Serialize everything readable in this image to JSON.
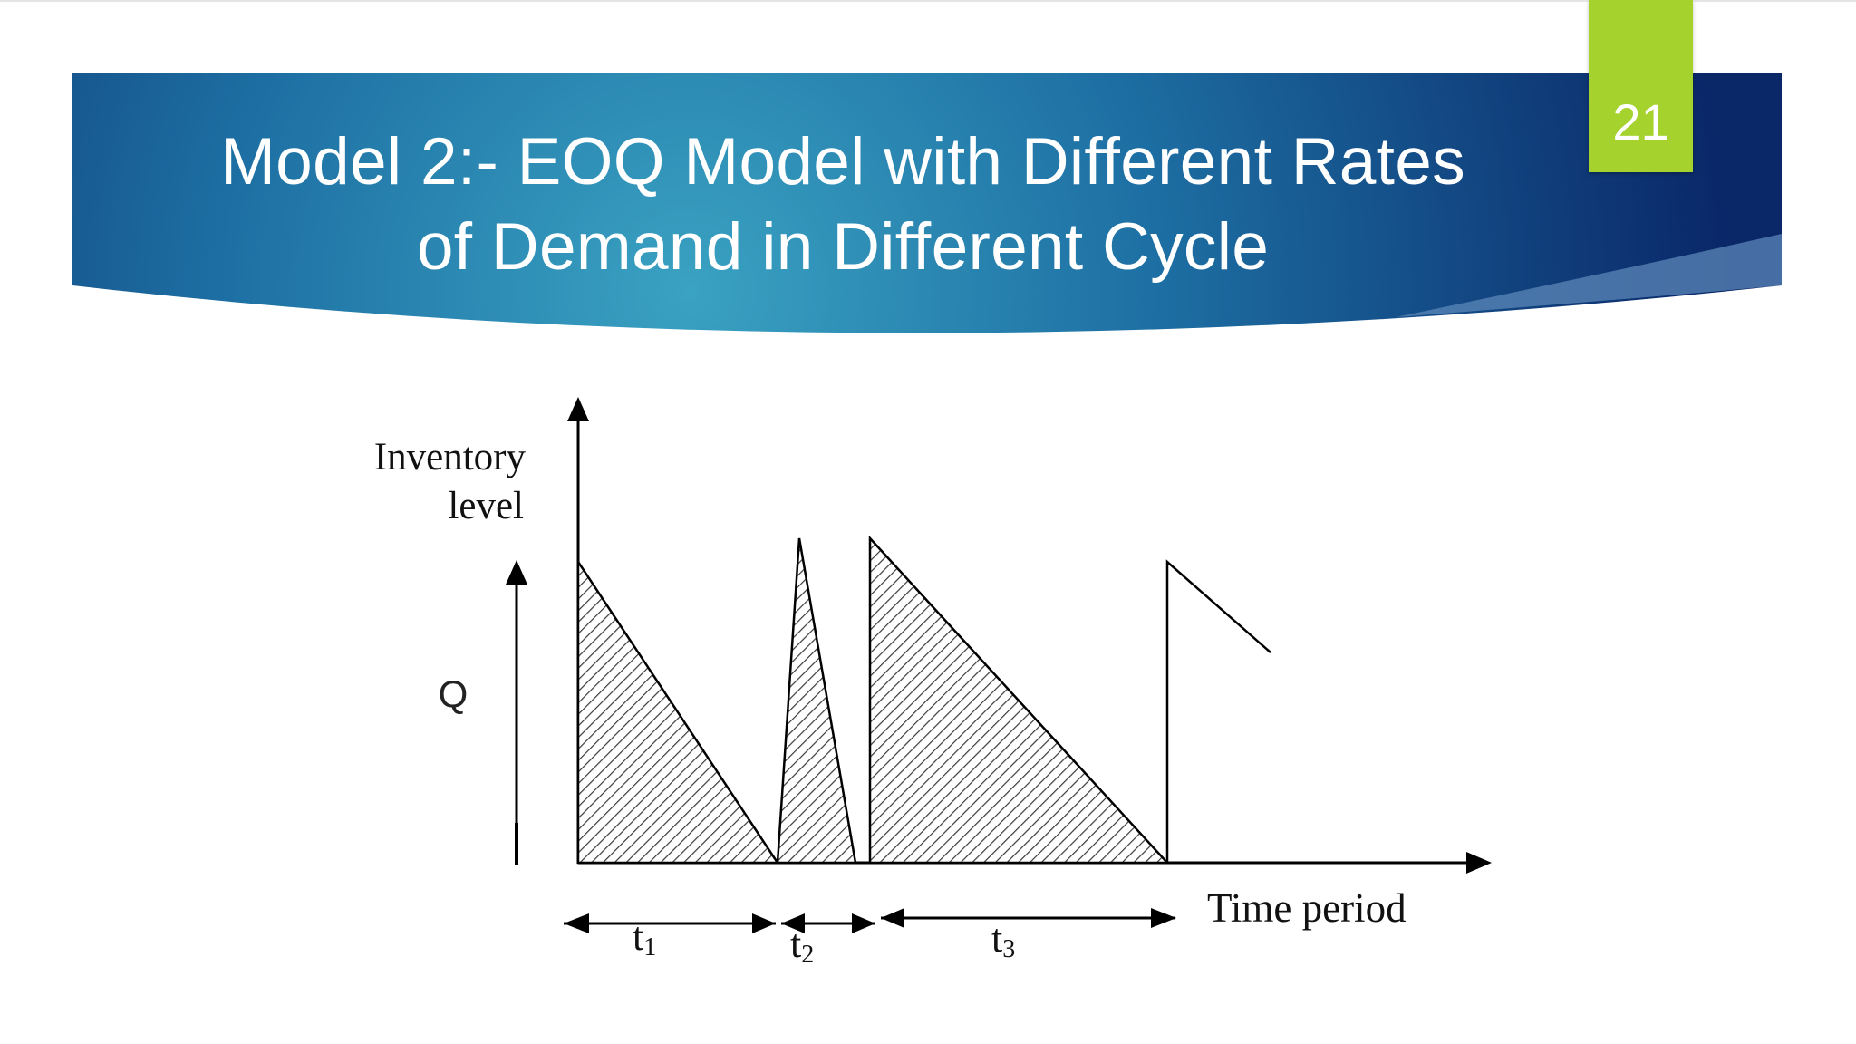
{
  "slide": {
    "title_line1": "Model 2:- EOQ Model with Different Rates",
    "title_line2": "of Demand in Different Cycle",
    "slide_number": "21",
    "colors": {
      "banner_dark": "#0b2a6b",
      "banner_mid": "#1e73a4",
      "banner_light": "#3a9fc0",
      "badge": "#a6d22e"
    }
  },
  "diagram": {
    "y_label_line1": "Inventory",
    "y_label_line2": "level",
    "q_label": "Q",
    "x_label": "Time period",
    "cycles": [
      {
        "label": "t",
        "subscript": "1"
      },
      {
        "label": "t",
        "subscript": "2"
      },
      {
        "label": "t",
        "subscript": "3"
      }
    ]
  }
}
